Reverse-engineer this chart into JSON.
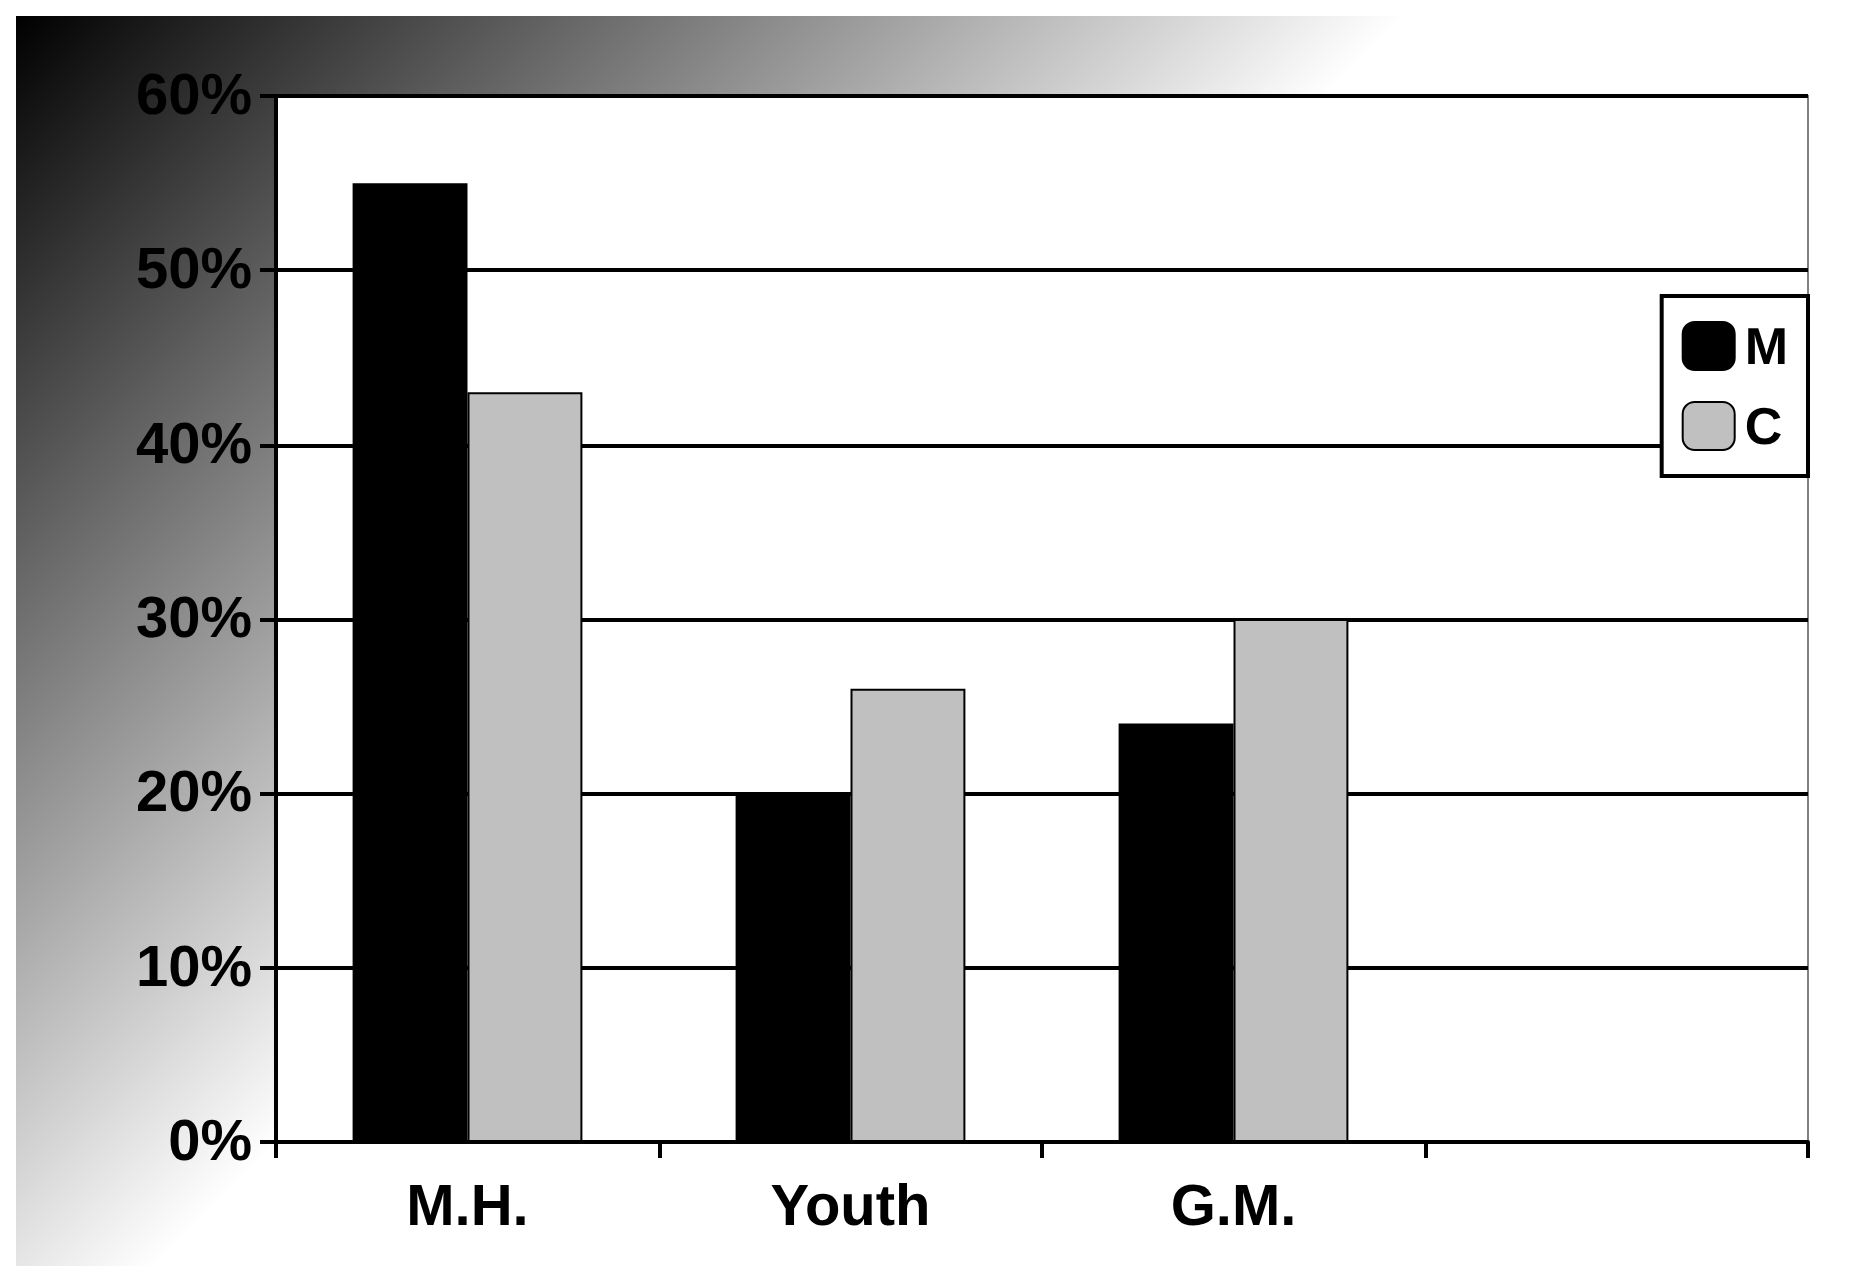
{
  "chart_data": {
    "type": "bar",
    "categories": [
      "M.H.",
      "Youth",
      "G.M.",
      null
    ],
    "series": [
      {
        "name": "M",
        "color": "#000000",
        "values": [
          55,
          20,
          24,
          null
        ]
      },
      {
        "name": "C",
        "color": "#c0c0c0",
        "values": [
          43,
          26,
          30,
          null
        ]
      }
    ],
    "ylim": [
      0,
      60
    ],
    "yticks": [
      {
        "value": 0,
        "label": "0%"
      },
      {
        "value": 10,
        "label": "10%"
      },
      {
        "value": 20,
        "label": "20%"
      },
      {
        "value": 30,
        "label": "30%"
      },
      {
        "value": 40,
        "label": "40%"
      },
      {
        "value": 50,
        "label": "50%"
      },
      {
        "value": 60,
        "label": "60%"
      }
    ],
    "grid": "y",
    "legend": "right"
  }
}
